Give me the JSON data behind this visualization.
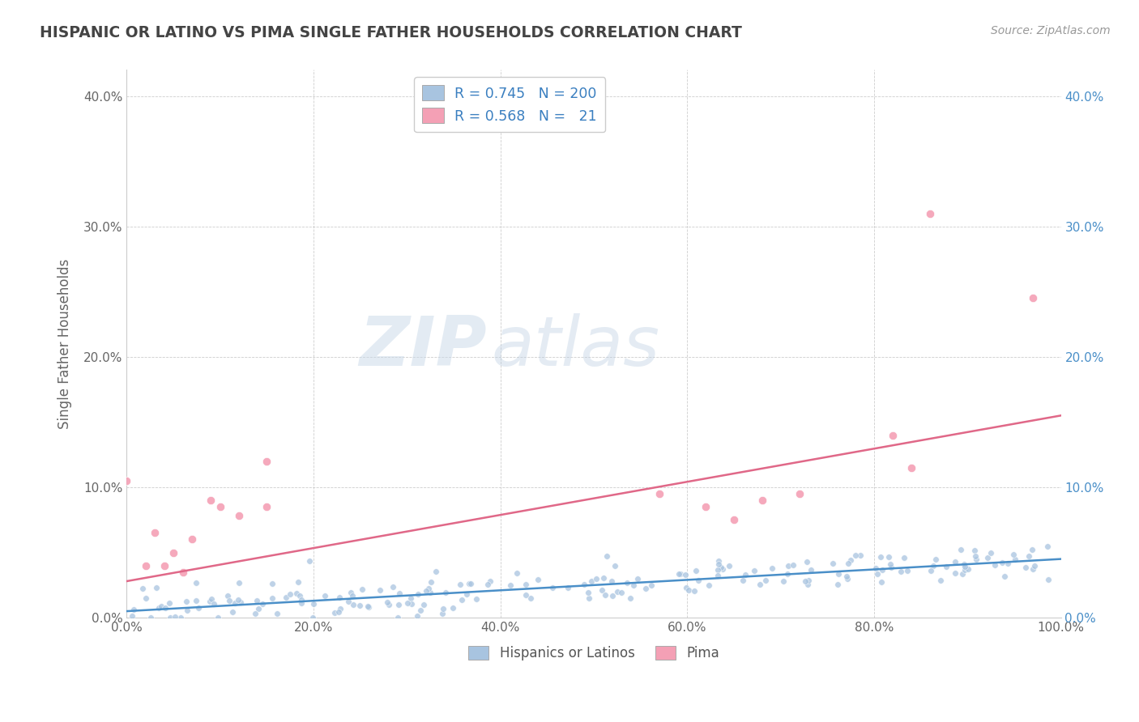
{
  "title": "HISPANIC OR LATINO VS PIMA SINGLE FATHER HOUSEHOLDS CORRELATION CHART",
  "source": "Source: ZipAtlas.com",
  "ylabel": "Single Father Households",
  "watermark_zip": "ZIP",
  "watermark_atlas": "atlas",
  "legend_blue_r": "0.745",
  "legend_blue_n": "200",
  "legend_pink_r": "0.568",
  "legend_pink_n": "21",
  "blue_color": "#a8c4e0",
  "pink_color": "#f4a0b5",
  "blue_line_color": "#4a8fc8",
  "pink_line_color": "#e06888",
  "title_color": "#444444",
  "legend_value_color": "#3a7fc0",
  "right_tick_color": "#4a8fc8",
  "xlim": [
    0.0,
    1.0
  ],
  "ylim": [
    0.0,
    0.42
  ],
  "x_ticks": [
    0.0,
    0.2,
    0.4,
    0.6,
    0.8,
    1.0
  ],
  "y_ticks": [
    0.0,
    0.1,
    0.2,
    0.3,
    0.4
  ],
  "x_tick_labels": [
    "0.0%",
    "20.0%",
    "40.0%",
    "60.0%",
    "80.0%",
    "100.0%"
  ],
  "y_tick_labels": [
    "0.0%",
    "10.0%",
    "20.0%",
    "30.0%",
    "40.0%"
  ],
  "background_color": "#ffffff",
  "grid_color": "#c8c8c8",
  "blue_n": 200,
  "pink_n": 21,
  "blue_line_start_y": 0.005,
  "blue_line_end_y": 0.045,
  "pink_line_start_y": 0.028,
  "pink_line_end_y": 0.155,
  "pink_points": [
    [
      0.0,
      0.105
    ],
    [
      0.02,
      0.04
    ],
    [
      0.03,
      0.065
    ],
    [
      0.04,
      0.04
    ],
    [
      0.05,
      0.05
    ],
    [
      0.06,
      0.035
    ],
    [
      0.07,
      0.06
    ],
    [
      0.09,
      0.09
    ],
    [
      0.1,
      0.085
    ],
    [
      0.12,
      0.078
    ],
    [
      0.15,
      0.085
    ],
    [
      0.57,
      0.095
    ],
    [
      0.62,
      0.085
    ],
    [
      0.65,
      0.075
    ],
    [
      0.68,
      0.09
    ],
    [
      0.72,
      0.095
    ],
    [
      0.82,
      0.14
    ],
    [
      0.84,
      0.115
    ],
    [
      0.86,
      0.31
    ],
    [
      0.97,
      0.245
    ],
    [
      0.15,
      0.12
    ]
  ]
}
